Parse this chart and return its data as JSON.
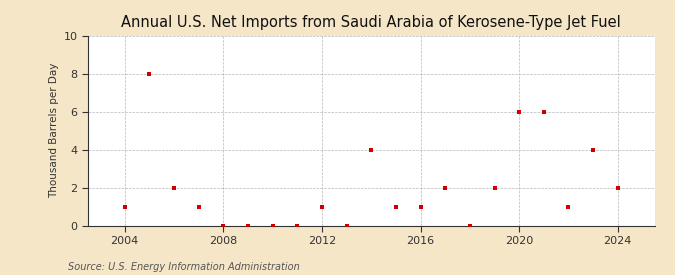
{
  "title": "Annual U.S. Net Imports from Saudi Arabia of Kerosene-Type Jet Fuel",
  "ylabel": "Thousand Barrels per Day",
  "source": "Source: U.S. Energy Information Administration",
  "background_color": "#f5e6c8",
  "plot_background_color": "#ffffff",
  "marker_color": "#cc0000",
  "grid_color": "#999999",
  "years": [
    2004,
    2005,
    2006,
    2007,
    2008,
    2009,
    2010,
    2011,
    2012,
    2013,
    2014,
    2015,
    2016,
    2017,
    2018,
    2019,
    2020,
    2021,
    2022,
    2023,
    2024
  ],
  "values": [
    1,
    8,
    2,
    1,
    0,
    0,
    0,
    0,
    1,
    0,
    4,
    1,
    1,
    2,
    0,
    2,
    6,
    6,
    1,
    4,
    2
  ],
  "ylim": [
    0,
    10
  ],
  "yticks": [
    0,
    2,
    4,
    6,
    8,
    10
  ],
  "xticks": [
    2004,
    2008,
    2012,
    2016,
    2020,
    2024
  ],
  "xlim": [
    2002.5,
    2025.5
  ],
  "title_fontsize": 10.5,
  "ylabel_fontsize": 7.5,
  "tick_fontsize": 8,
  "source_fontsize": 7
}
